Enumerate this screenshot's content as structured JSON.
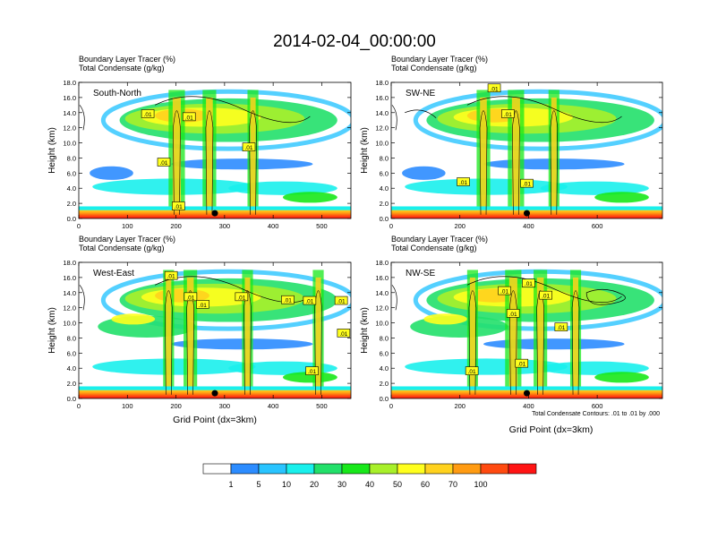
{
  "title": "2014-02-04_00:00:00",
  "colors": {
    "levels": [
      "#ffffff",
      "#2c8cff",
      "#29c4ff",
      "#19f0ec",
      "#22e06a",
      "#18e81a",
      "#a8f02a",
      "#ffff1e",
      "#ffd21e",
      "#ff9b12",
      "#ff4a10",
      "#ff1414"
    ],
    "contour": "#000000",
    "marker": "#000000"
  },
  "colorbar": {
    "labels": [
      "1",
      "5",
      "10",
      "20",
      "30",
      "40",
      "50",
      "60",
      "70",
      "100"
    ]
  },
  "footnote": "Total Condensate Contours: .01 to .01 by .000",
  "chart_data": [
    {
      "type": "heatmap",
      "panel": "South-North",
      "title_line1": "Boundary Layer Tracer    (%)",
      "title_line2": "Total Condensate    (g/kg)",
      "ylabel": "Height (km)",
      "xlabel": "",
      "xlim": [
        0,
        560
      ],
      "xticks": [
        "0",
        "100",
        "200",
        "300",
        "400",
        "500"
      ],
      "xtick_values": [
        0,
        100,
        200,
        300,
        400,
        500
      ],
      "ylim": [
        0,
        18
      ],
      "yticks": [
        "0.0",
        "2.0",
        "4.0",
        "6.0",
        "8.0",
        "10.0",
        "12.0",
        "14.0",
        "16.0",
        "18.0"
      ],
      "marker_x": 280,
      "contour_labels": [
        {
          "x": 142,
          "y": 13.8,
          "text": ".01"
        },
        {
          "x": 227,
          "y": 13.4,
          "text": ".01"
        },
        {
          "x": 175,
          "y": 7.4,
          "text": ".01"
        },
        {
          "x": 350,
          "y": 9.4,
          "text": ".01"
        },
        {
          "x": 205,
          "y": 1.6,
          "text": ".01"
        }
      ]
    },
    {
      "type": "heatmap",
      "panel": "SW-NE",
      "title_line1": "Boundary Layer Tracer    (%)",
      "title_line2": "Total Condensate    (g/kg)",
      "ylabel": "Height (km)",
      "xlabel": "",
      "xlim": [
        0,
        790
      ],
      "xticks": [
        "0",
        "200",
        "400",
        "600"
      ],
      "xtick_values": [
        0,
        200,
        400,
        600
      ],
      "ylim": [
        0,
        18
      ],
      "yticks": [
        "0.0",
        "2.0",
        "4.0",
        "6.0",
        "8.0",
        "10.0",
        "12.0",
        "14.0",
        "16.0",
        "18.0"
      ],
      "marker_x": 395,
      "contour_labels": [
        {
          "x": 300,
          "y": 17.2,
          "text": ".01"
        },
        {
          "x": 340,
          "y": 13.8,
          "text": ".01"
        },
        {
          "x": 210,
          "y": 4.8,
          "text": ".01"
        },
        {
          "x": 395,
          "y": 4.6,
          "text": ".01"
        }
      ]
    },
    {
      "type": "heatmap",
      "panel": "West-East",
      "title_line1": "Boundary Layer Tracer    (%)",
      "title_line2": "Total Condensate    (g/kg)",
      "ylabel": "Height (km)",
      "xlabel": "Grid Point (dx=3km)",
      "xlim": [
        0,
        560
      ],
      "xticks": [
        "0",
        "100",
        "200",
        "300",
        "400",
        "500"
      ],
      "xtick_values": [
        0,
        100,
        200,
        300,
        400,
        500
      ],
      "ylim": [
        0,
        18
      ],
      "yticks": [
        "0.0",
        "2.0",
        "4.0",
        "6.0",
        "8.0",
        "10.0",
        "12.0",
        "14.0",
        "16.0",
        "18.0"
      ],
      "marker_x": 280,
      "contour_labels": [
        {
          "x": 190,
          "y": 16.2,
          "text": ".01"
        },
        {
          "x": 230,
          "y": 13.4,
          "text": ".01"
        },
        {
          "x": 255,
          "y": 12.4,
          "text": ".01"
        },
        {
          "x": 335,
          "y": 13.4,
          "text": ".01"
        },
        {
          "x": 430,
          "y": 13.0,
          "text": ".01"
        },
        {
          "x": 475,
          "y": 12.9,
          "text": ".01"
        },
        {
          "x": 540,
          "y": 12.9,
          "text": ".01"
        },
        {
          "x": 545,
          "y": 8.6,
          "text": ".01"
        },
        {
          "x": 480,
          "y": 3.6,
          "text": ".01"
        }
      ]
    },
    {
      "type": "heatmap",
      "panel": "NW-SE",
      "title_line1": "Boundary Layer Tracer    (%)",
      "title_line2": "Total Condensate    (g/kg)",
      "ylabel": "Height (km)",
      "xlabel": "Grid Point (dx=3km)",
      "xlim": [
        0,
        790
      ],
      "xticks": [
        "0",
        "200",
        "400",
        "600"
      ],
      "xtick_values": [
        0,
        200,
        400,
        600
      ],
      "ylim": [
        0,
        18
      ],
      "yticks": [
        "0.0",
        "2.0",
        "4.0",
        "6.0",
        "8.0",
        "10.0",
        "12.0",
        "14.0",
        "16.0",
        "18.0"
      ],
      "marker_x": 395,
      "contour_labels": [
        {
          "x": 330,
          "y": 14.2,
          "text": ".01"
        },
        {
          "x": 400,
          "y": 15.2,
          "text": ".01"
        },
        {
          "x": 450,
          "y": 13.6,
          "text": ".01"
        },
        {
          "x": 355,
          "y": 11.2,
          "text": ".01"
        },
        {
          "x": 495,
          "y": 9.4,
          "text": ".01"
        },
        {
          "x": 235,
          "y": 3.6,
          "text": ".01"
        },
        {
          "x": 380,
          "y": 4.6,
          "text": ".01"
        }
      ]
    }
  ]
}
